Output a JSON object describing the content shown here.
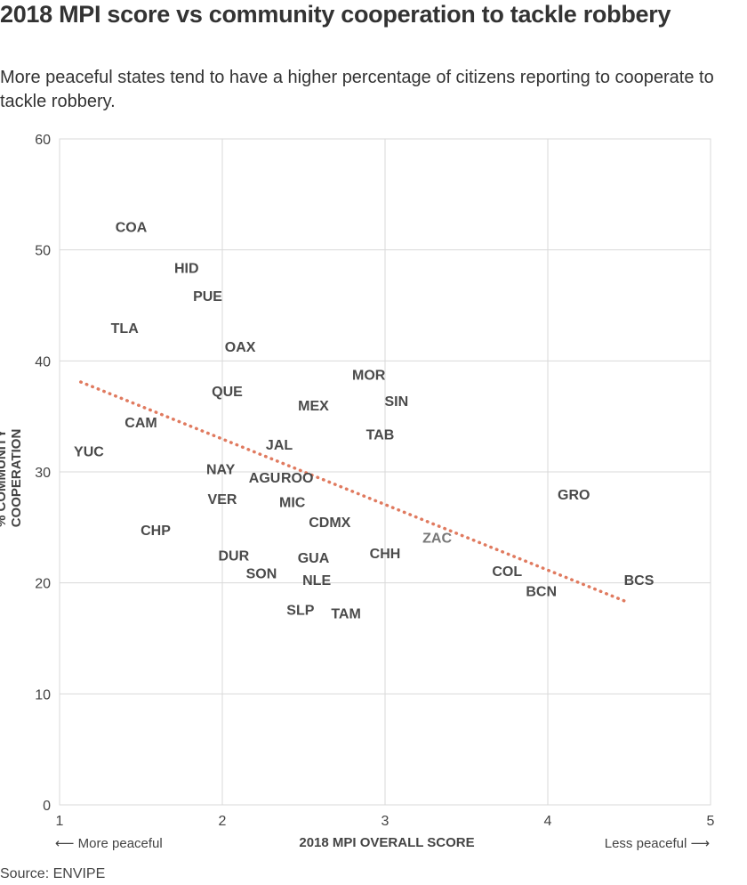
{
  "header": {
    "title": "2018 MPI score vs community cooperation to tackle robbery",
    "subtitle": "More peaceful states tend to have a higher percentage of citizens reporting to cooperate to tackle robbery."
  },
  "footer": {
    "source": "Source: ENVIPE",
    "more_peaceful": "⟵ More peaceful",
    "less_peaceful": "Less peaceful ⟶"
  },
  "colors": {
    "label": "#4a4a4a",
    "label_highlight": "#777777",
    "trendline": "#e07a5f",
    "grid": "#d9d9d9"
  },
  "chart_data": {
    "type": "scatter",
    "title": "2018 MPI score vs community cooperation to tackle robbery",
    "xlabel": "2018 MPI OVERALL SCORE",
    "ylabel": "% COMMUNITY COOPERATION",
    "xlim": [
      1,
      5
    ],
    "ylim": [
      0,
      60
    ],
    "xticks": [
      1,
      2,
      3,
      4,
      5
    ],
    "yticks": [
      0,
      10,
      20,
      30,
      40,
      50,
      60
    ],
    "grid": true,
    "points": [
      {
        "label": "COA",
        "x": 1.44,
        "y": 52.1
      },
      {
        "label": "HID",
        "x": 1.78,
        "y": 48.4
      },
      {
        "label": "PUE",
        "x": 1.91,
        "y": 45.9
      },
      {
        "label": "TLA",
        "x": 1.4,
        "y": 43.0
      },
      {
        "label": "OAX",
        "x": 2.11,
        "y": 41.3
      },
      {
        "label": "MOR",
        "x": 2.9,
        "y": 38.8
      },
      {
        "label": "QUE",
        "x": 2.03,
        "y": 37.3
      },
      {
        "label": "SIN",
        "x": 3.07,
        "y": 36.4
      },
      {
        "label": "MEX",
        "x": 2.56,
        "y": 36.0
      },
      {
        "label": "CAM",
        "x": 1.5,
        "y": 34.5
      },
      {
        "label": "TAB",
        "x": 2.97,
        "y": 33.4
      },
      {
        "label": "JAL",
        "x": 2.35,
        "y": 32.5
      },
      {
        "label": "YUC",
        "x": 1.18,
        "y": 31.9
      },
      {
        "label": "NAY",
        "x": 1.99,
        "y": 30.3
      },
      {
        "label": "AGU",
        "x": 2.26,
        "y": 29.5
      },
      {
        "label": "ROO",
        "x": 2.46,
        "y": 29.5
      },
      {
        "label": "VER",
        "x": 2.0,
        "y": 27.6
      },
      {
        "label": "MIC",
        "x": 2.43,
        "y": 27.3
      },
      {
        "label": "GRO",
        "x": 4.16,
        "y": 28.0
      },
      {
        "label": "CDMX",
        "x": 2.66,
        "y": 25.5
      },
      {
        "label": "CHP",
        "x": 1.59,
        "y": 24.8
      },
      {
        "label": "ZAC",
        "x": 3.32,
        "y": 24.1
      },
      {
        "label": "CHH",
        "x": 3.0,
        "y": 22.7
      },
      {
        "label": "DUR",
        "x": 2.07,
        "y": 22.5
      },
      {
        "label": "GUA",
        "x": 2.56,
        "y": 22.3
      },
      {
        "label": "COL",
        "x": 3.75,
        "y": 21.1
      },
      {
        "label": "SON",
        "x": 2.24,
        "y": 20.9
      },
      {
        "label": "NLE",
        "x": 2.58,
        "y": 20.3
      },
      {
        "label": "BCS",
        "x": 4.56,
        "y": 20.3
      },
      {
        "label": "BCN",
        "x": 3.96,
        "y": 19.3
      },
      {
        "label": "SLP",
        "x": 2.48,
        "y": 17.6
      },
      {
        "label": "TAM",
        "x": 2.76,
        "y": 17.3
      }
    ],
    "trendline": {
      "x": [
        1.13,
        4.5
      ],
      "y": [
        38.1,
        18.2
      ],
      "style": "dotted"
    }
  }
}
